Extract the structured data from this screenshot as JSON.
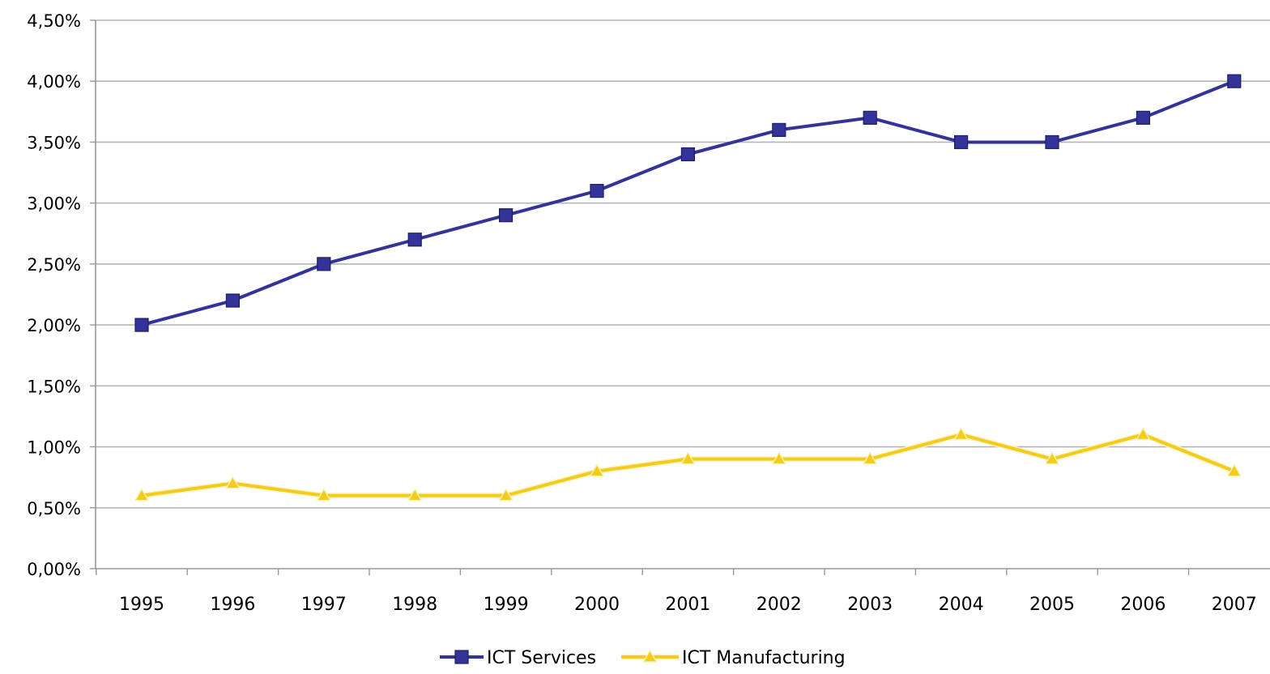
{
  "chart_data": {
    "type": "line",
    "title": "",
    "xlabel": "",
    "ylabel": "",
    "categories": [
      "1995",
      "1996",
      "1997",
      "1998",
      "1999",
      "2000",
      "2001",
      "2002",
      "2003",
      "2004",
      "2005",
      "2006",
      "2007"
    ],
    "y_ticks": [
      "0,00%",
      "0,50%",
      "1,00%",
      "1,50%",
      "2,00%",
      "2,50%",
      "3,00%",
      "3,50%",
      "4,00%",
      "4,50%"
    ],
    "ylim": [
      0,
      4.5
    ],
    "grid": true,
    "legend_position": "bottom",
    "series": [
      {
        "name": "ICT Services",
        "values": [
          2.0,
          2.2,
          2.5,
          2.7,
          2.9,
          3.1,
          3.4,
          3.6,
          3.7,
          3.5,
          3.5,
          3.7,
          4.0
        ],
        "color": "#333399",
        "marker": "square"
      },
      {
        "name": "ICT Manufacturing",
        "values": [
          0.6,
          0.7,
          0.6,
          0.6,
          0.6,
          0.8,
          0.9,
          0.9,
          0.9,
          1.1,
          0.9,
          1.1,
          0.8
        ],
        "color": "#F2CC18",
        "marker": "triangle"
      }
    ]
  }
}
